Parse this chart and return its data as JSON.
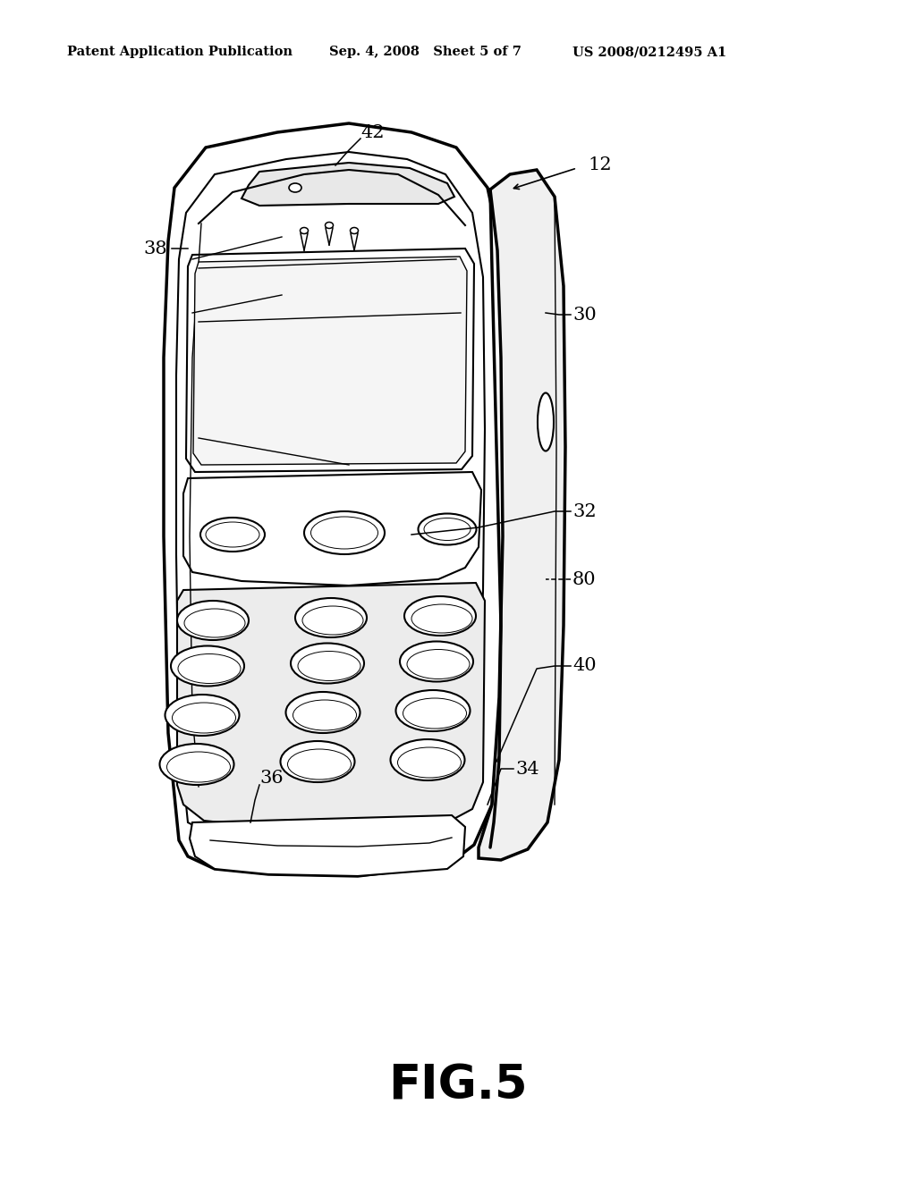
{
  "header_left": "Patent Application Publication",
  "header_mid": "Sep. 4, 2008   Sheet 5 of 7",
  "header_right": "US 2008/0212495 A1",
  "figure_label": "FIG.5",
  "bg": "#ffffff",
  "lc": "#000000",
  "header_fontsize": 10.5,
  "fig_fontsize": 38,
  "label_fontsize": 15
}
